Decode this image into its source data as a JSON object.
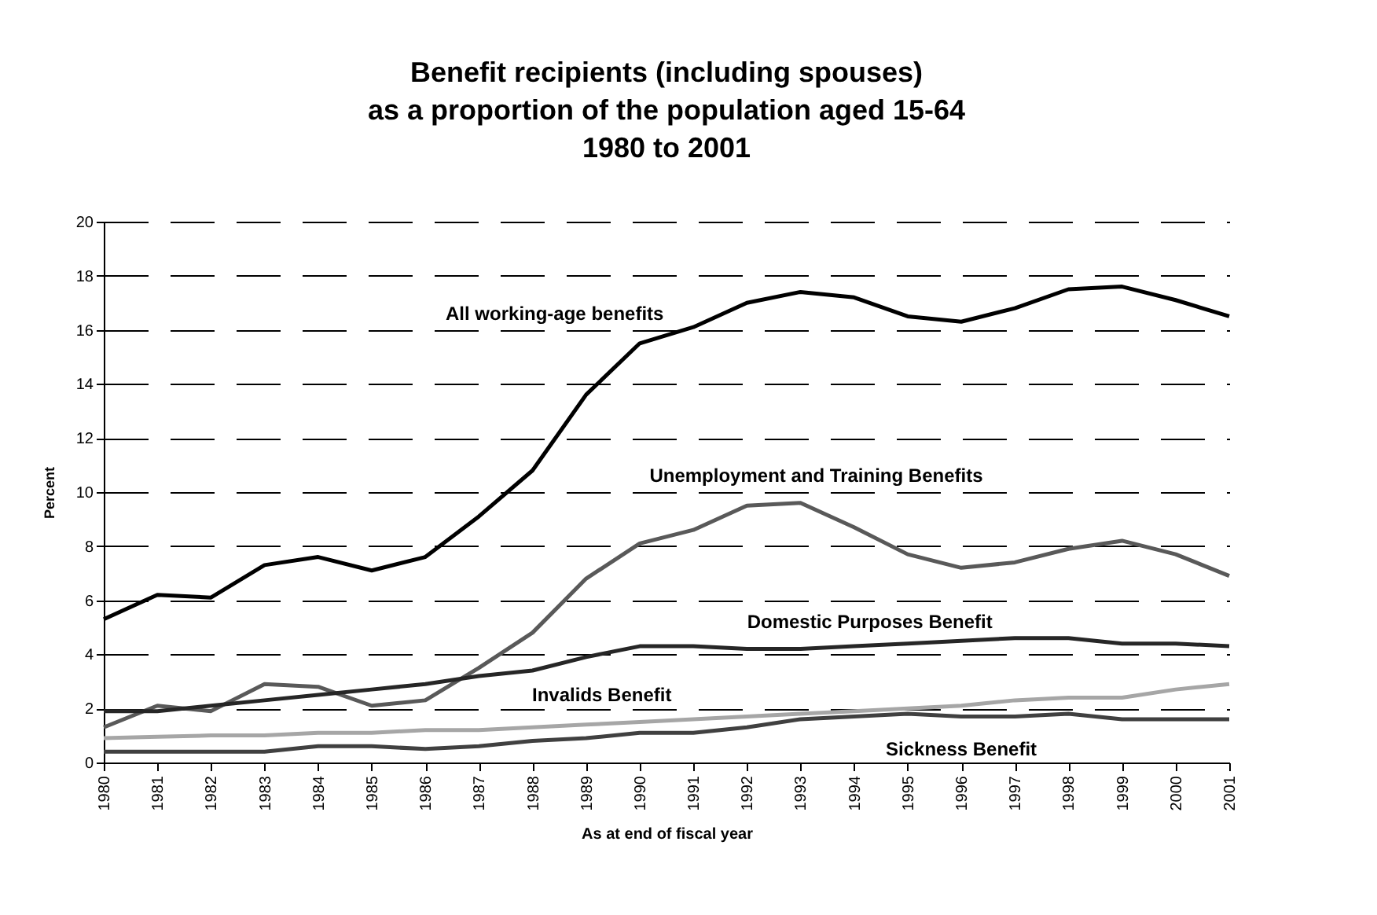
{
  "chart_data": {
    "type": "line",
    "title": "Benefit recipients (including spouses)\nas a proportion of the population aged 15-64\n1980 to 2001",
    "xlabel": "As at end of fiscal year",
    "ylabel": "Percent",
    "categories": [
      "1980",
      "1981",
      "1982",
      "1983",
      "1984",
      "1985",
      "1986",
      "1987",
      "1988",
      "1989",
      "1990",
      "1991",
      "1992",
      "1993",
      "1994",
      "1995",
      "1996",
      "1997",
      "1998",
      "1999",
      "2000",
      "2001"
    ],
    "series": [
      {
        "name": "All working-age benefits",
        "color": "#000000",
        "values": [
          5.3,
          6.2,
          6.1,
          7.3,
          7.6,
          7.1,
          7.6,
          9.1,
          10.8,
          13.6,
          15.5,
          16.1,
          17.0,
          17.4,
          17.2,
          16.5,
          16.3,
          16.8,
          17.5,
          17.6,
          17.1,
          16.5
        ]
      },
      {
        "name": "Unemployment and Training Benefits",
        "color": "#595959",
        "values": [
          1.3,
          2.1,
          1.9,
          2.9,
          2.8,
          2.1,
          2.3,
          3.5,
          4.8,
          6.8,
          8.1,
          8.6,
          9.5,
          9.6,
          8.7,
          7.7,
          7.2,
          7.4,
          7.9,
          8.2,
          7.7,
          6.9
        ]
      },
      {
        "name": "Domestic Purposes Benefit",
        "color": "#262626",
        "values": [
          1.9,
          1.9,
          2.1,
          2.3,
          2.5,
          2.7,
          2.9,
          3.2,
          3.4,
          3.9,
          4.3,
          4.3,
          4.2,
          4.2,
          4.3,
          4.4,
          4.5,
          4.6,
          4.6,
          4.4,
          4.4,
          4.3
        ]
      },
      {
        "name": "Invalids Benefit",
        "color": "#a6a6a6",
        "values": [
          0.9,
          0.95,
          1.0,
          1.0,
          1.1,
          1.1,
          1.2,
          1.2,
          1.3,
          1.4,
          1.5,
          1.6,
          1.7,
          1.8,
          1.9,
          2.0,
          2.1,
          2.3,
          2.4,
          2.4,
          2.7,
          2.9
        ]
      },
      {
        "name": "Sickness Benefit",
        "color": "#404040",
        "values": [
          0.4,
          0.4,
          0.4,
          0.4,
          0.6,
          0.6,
          0.5,
          0.6,
          0.8,
          0.9,
          1.1,
          1.1,
          1.3,
          1.6,
          1.7,
          1.8,
          1.7,
          1.7,
          1.8,
          1.6,
          1.6,
          1.6
        ]
      }
    ],
    "ylim": [
      0,
      20
    ],
    "yticks": [
      0,
      2,
      4,
      6,
      8,
      10,
      12,
      14,
      16,
      18,
      20
    ],
    "grid": "y",
    "legend": false,
    "marker": "none",
    "line_style": "solid"
  }
}
